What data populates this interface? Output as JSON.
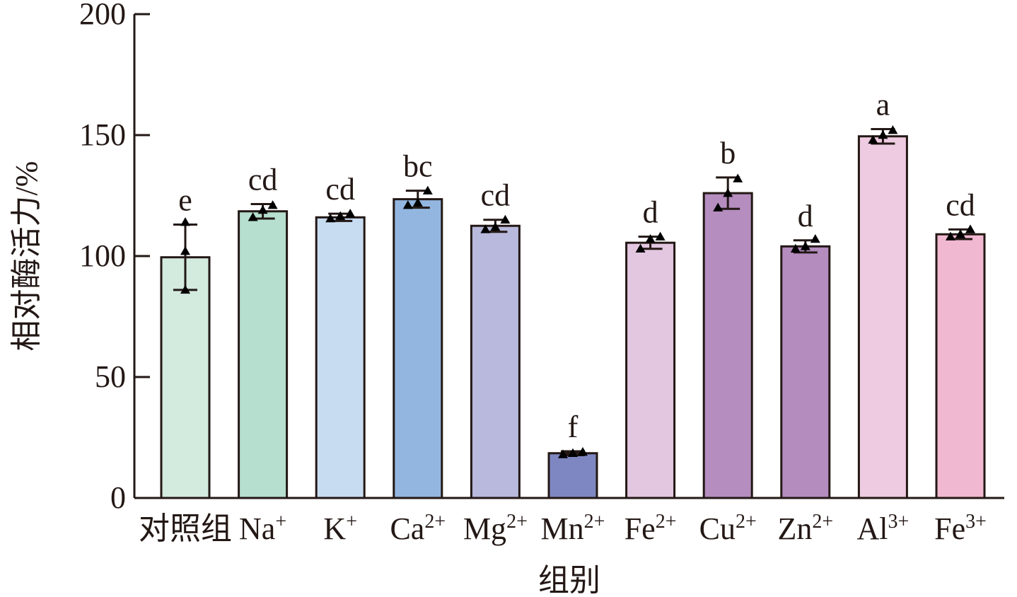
{
  "chart_data": {
    "type": "bar",
    "xlabel": "组别",
    "ylabel": "相对酶活力/%",
    "ylim": [
      0,
      200
    ],
    "yticks": [
      "0",
      "50",
      "100",
      "150",
      "200"
    ],
    "grid": false,
    "categories": [
      {
        "base": "对照组",
        "sup": ""
      },
      {
        "base": "Na",
        "sup": "+"
      },
      {
        "base": "K",
        "sup": "+"
      },
      {
        "base": "Ca",
        "sup": "2+"
      },
      {
        "base": "Mg",
        "sup": "2+"
      },
      {
        "base": "Mn",
        "sup": "2+"
      },
      {
        "base": "Fe",
        "sup": "2+"
      },
      {
        "base": "Cu",
        "sup": "2+"
      },
      {
        "base": "Zn",
        "sup": "2+"
      },
      {
        "base": "Al",
        "sup": "3+"
      },
      {
        "base": "Fe",
        "sup": "3+"
      }
    ],
    "values": [
      99.5,
      118.5,
      116,
      123.5,
      112.5,
      18.5,
      105.5,
      126,
      104,
      149.5,
      109
    ],
    "errors": [
      13.5,
      3,
      1.5,
      3.5,
      2.5,
      0.8,
      2.5,
      6.5,
      2.5,
      3,
      2
    ],
    "points": [
      [
        86,
        102,
        114
      ],
      [
        116,
        119,
        121
      ],
      [
        115.5,
        116.5,
        117.5
      ],
      [
        121,
        122,
        127
      ],
      [
        111,
        112,
        115
      ],
      [
        18,
        18.5,
        19
      ],
      [
        103,
        107,
        108
      ],
      [
        120,
        126,
        132
      ],
      [
        103,
        104,
        107
      ],
      [
        148,
        150,
        152
      ],
      [
        108,
        109,
        111
      ]
    ],
    "significance": [
      "e",
      "cd",
      "cd",
      "bc",
      "cd",
      "f",
      "d",
      "b",
      "d",
      "a",
      "cd"
    ],
    "colors": [
      "#d3eadf",
      "#b6dfcf",
      "#c8dcf1",
      "#93b6e0",
      "#b8b9dc",
      "#7e87c1",
      "#e3c7e0",
      "#b58dbf",
      "#b48cbe",
      "#eecbe1",
      "#f1b8d1"
    ],
    "edge_color": "#231815"
  }
}
